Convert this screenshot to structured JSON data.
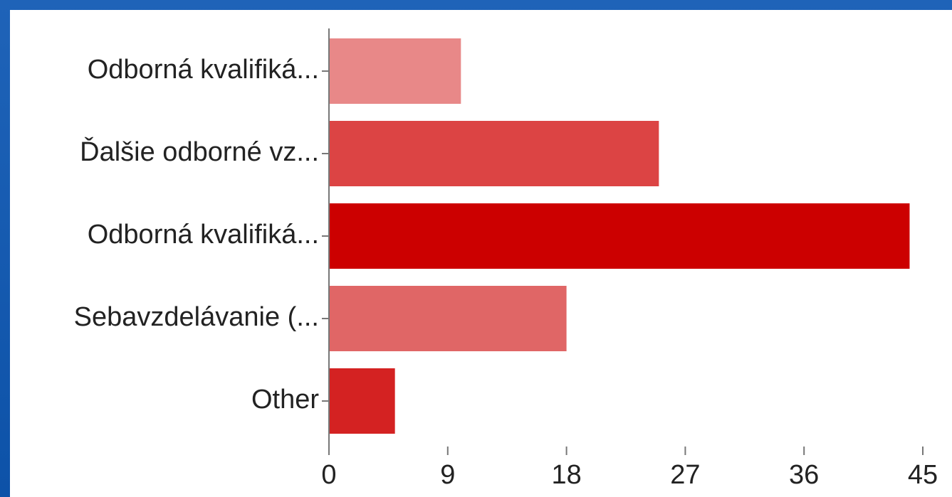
{
  "chart_data": {
    "type": "bar",
    "orientation": "horizontal",
    "categories": [
      "Odborná kvalifiká...",
      "Ďalšie odborné vz...",
      "Odborná kvalifiká...",
      "Sebavzdelávanie (...",
      "Other"
    ],
    "values": [
      10,
      25,
      44,
      18,
      5
    ],
    "bar_colors": [
      "#e88888",
      "#dc4444",
      "#cc0000",
      "#e06666",
      "#d42222"
    ],
    "xticks": [
      0,
      9,
      18,
      27,
      36,
      45
    ],
    "xlim": [
      0,
      45
    ],
    "title": "",
    "xlabel": "",
    "ylabel": "",
    "grid": false,
    "legend": "none"
  }
}
